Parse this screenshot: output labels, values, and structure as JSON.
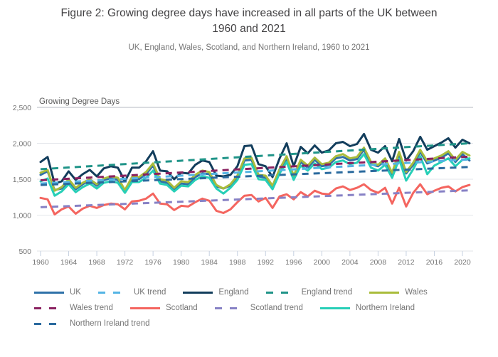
{
  "figure": {
    "title": "Figure 2: Growing degree days have increased in all parts of the UK between 1960 and 2021",
    "subtitle": "UK, England, Wales, Scotland, and Northern Ireland, 1960 to 2021"
  },
  "colors": {
    "title_text": "#414042",
    "subtitle_text": "#757575",
    "axis_title_text": "#595959",
    "tick_text": "#757575",
    "gridline": "#e3e6ea",
    "gridline_top": "#b4bac1",
    "axis_line": "#c6d1e0"
  },
  "chart_data": {
    "type": "line",
    "axis_title": "Growing Degree Days",
    "xlim": [
      1960,
      2021
    ],
    "ylim": [
      500,
      2500
    ],
    "grid": true,
    "legend_position": "bottom",
    "x_ticks": [
      1960,
      1964,
      1968,
      1972,
      1976,
      1980,
      1984,
      1988,
      1992,
      1996,
      2000,
      2004,
      2008,
      2012,
      2016,
      2020
    ],
    "y_ticks": [
      {
        "value": 500,
        "label": "500"
      },
      {
        "value": 1000,
        "label": "1,000"
      },
      {
        "value": 1500,
        "label": "1,500"
      },
      {
        "value": 2000,
        "label": "2,000"
      },
      {
        "value": 2500,
        "label": "2,500"
      }
    ],
    "years": [
      1960,
      1961,
      1962,
      1963,
      1964,
      1965,
      1966,
      1967,
      1968,
      1969,
      1970,
      1971,
      1972,
      1973,
      1974,
      1975,
      1976,
      1977,
      1978,
      1979,
      1980,
      1981,
      1982,
      1983,
      1984,
      1985,
      1986,
      1987,
      1988,
      1989,
      1990,
      1991,
      1992,
      1993,
      1994,
      1995,
      1996,
      1997,
      1998,
      1999,
      2000,
      2001,
      2002,
      2003,
      2004,
      2005,
      2006,
      2007,
      2008,
      2009,
      2010,
      2011,
      2012,
      2013,
      2014,
      2015,
      2016,
      2017,
      2018,
      2019,
      2020,
      2021
    ],
    "series": [
      {
        "name": "UK",
        "color": "#2e71a8",
        "dash": false,
        "values": [
          1560,
          1610,
          1350,
          1370,
          1470,
          1360,
          1430,
          1480,
          1410,
          1490,
          1510,
          1490,
          1340,
          1500,
          1500,
          1570,
          1690,
          1470,
          1450,
          1360,
          1440,
          1430,
          1530,
          1580,
          1570,
          1400,
          1370,
          1410,
          1520,
          1760,
          1770,
          1540,
          1520,
          1390,
          1610,
          1790,
          1520,
          1740,
          1660,
          1770,
          1680,
          1700,
          1790,
          1810,
          1760,
          1780,
          1910,
          1710,
          1680,
          1760,
          1570,
          1850,
          1580,
          1700,
          1880,
          1720,
          1760,
          1800,
          1860,
          1740,
          1850,
          1760
        ]
      },
      {
        "name": "UK trend",
        "color": "#54b4e4",
        "dash": true,
        "trend": [
          1440,
          1775
        ]
      },
      {
        "name": "England",
        "color": "#123d5c",
        "dash": false,
        "values": [
          1740,
          1810,
          1440,
          1470,
          1610,
          1490,
          1570,
          1630,
          1540,
          1650,
          1680,
          1660,
          1470,
          1660,
          1660,
          1750,
          1890,
          1620,
          1610,
          1500,
          1590,
          1580,
          1700,
          1760,
          1740,
          1550,
          1540,
          1560,
          1680,
          1960,
          1970,
          1710,
          1680,
          1530,
          1790,
          2000,
          1680,
          1950,
          1860,
          1970,
          1870,
          1900,
          2000,
          2020,
          1960,
          1990,
          2130,
          1910,
          1870,
          1960,
          1750,
          2060,
          1760,
          1890,
          2090,
          1910,
          1960,
          2010,
          2070,
          1940,
          2050,
          2000
        ]
      },
      {
        "name": "England trend",
        "color": "#1f9488",
        "dash": true,
        "trend": [
          1640,
          2000
        ]
      },
      {
        "name": "Wales",
        "color": "#a9bc3b",
        "dash": false,
        "values": [
          1590,
          1630,
          1340,
          1390,
          1500,
          1380,
          1450,
          1500,
          1430,
          1510,
          1540,
          1520,
          1350,
          1530,
          1530,
          1600,
          1720,
          1500,
          1480,
          1380,
          1470,
          1460,
          1560,
          1620,
          1600,
          1420,
          1370,
          1430,
          1550,
          1790,
          1800,
          1560,
          1550,
          1410,
          1640,
          1820,
          1550,
          1770,
          1690,
          1800,
          1710,
          1730,
          1820,
          1850,
          1790,
          1810,
          1940,
          1740,
          1700,
          1790,
          1590,
          1880,
          1600,
          1730,
          1910,
          1750,
          1790,
          1830,
          1890,
          1770,
          1880,
          1830
        ]
      },
      {
        "name": "Wales trend",
        "color": "#8a2160",
        "dash": true,
        "trend": [
          1485,
          1815
        ]
      },
      {
        "name": "Scotland",
        "color": "#f4655f",
        "dash": false,
        "values": [
          1240,
          1220,
          1010,
          1080,
          1120,
          1020,
          1090,
          1130,
          1100,
          1140,
          1160,
          1150,
          1080,
          1190,
          1200,
          1230,
          1300,
          1160,
          1150,
          1070,
          1130,
          1120,
          1180,
          1230,
          1200,
          1060,
          1030,
          1080,
          1180,
          1270,
          1280,
          1190,
          1240,
          1100,
          1260,
          1290,
          1220,
          1320,
          1260,
          1340,
          1300,
          1290,
          1370,
          1400,
          1350,
          1380,
          1430,
          1350,
          1310,
          1380,
          1160,
          1380,
          1120,
          1310,
          1430,
          1290,
          1340,
          1380,
          1400,
          1330,
          1390,
          1420
        ]
      },
      {
        "name": "Scotland trend",
        "color": "#8781c5",
        "dash": true,
        "trend": [
          1110,
          1345
        ]
      },
      {
        "name": "Northern Ireland",
        "color": "#27cfb7",
        "dash": false,
        "values": [
          1470,
          1510,
          1270,
          1330,
          1430,
          1320,
          1390,
          1440,
          1370,
          1450,
          1470,
          1450,
          1310,
          1460,
          1460,
          1520,
          1620,
          1440,
          1420,
          1330,
          1410,
          1400,
          1490,
          1540,
          1520,
          1370,
          1300,
          1380,
          1490,
          1700,
          1710,
          1500,
          1490,
          1360,
          1580,
          1740,
          1490,
          1690,
          1620,
          1720,
          1640,
          1660,
          1740,
          1760,
          1710,
          1730,
          1850,
          1660,
          1620,
          1700,
          1520,
          1780,
          1480,
          1640,
          1820,
          1570,
          1690,
          1740,
          1790,
          1680,
          1770,
          1790
        ]
      },
      {
        "name": "Northern Ireland trend",
        "color": "#2a6a9e",
        "dash": true,
        "trend": [
          1420,
          1670
        ]
      }
    ]
  }
}
